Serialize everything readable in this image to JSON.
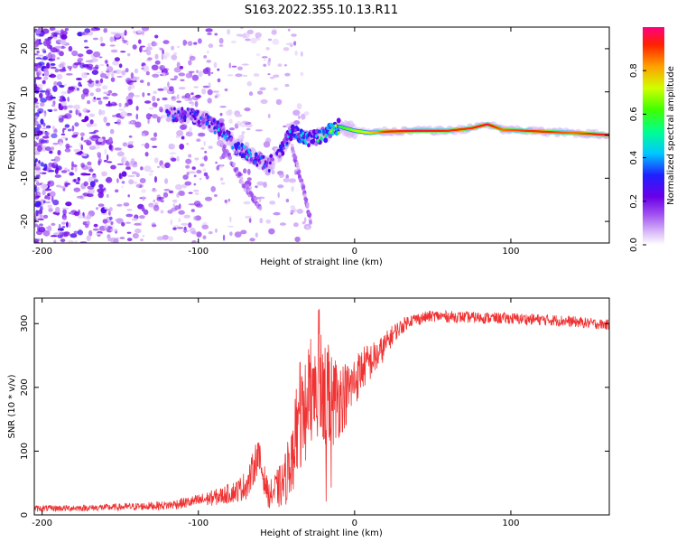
{
  "figure": {
    "title": "S163.2022.355.10.13.R11"
  },
  "chart_data": [
    {
      "type": "heatmap",
      "name": "spectrogram",
      "xlabel": "Height of straight line (km)",
      "ylabel": "Frequency (Hz)",
      "xlim": [
        -205,
        163
      ],
      "ylim": [
        -25,
        25
      ],
      "xticks": [
        -200,
        -100,
        0,
        100
      ],
      "yticks": [
        -20,
        -10,
        0,
        10,
        20
      ],
      "colorbar": {
        "label": "Normalized spectral amplitude",
        "range": [
          0,
          1
        ],
        "ticks": [
          "0.0",
          "0.2",
          "0.4",
          "0.6",
          "0.8"
        ],
        "colormap": [
          "#ffffff",
          "#d8b8f8",
          "#a050f0",
          "#6a00e8",
          "#2020ff",
          "#00c8ff",
          "#00ff90",
          "#40ff00",
          "#d0ff00",
          "#ffa000",
          "#ff2000",
          "#ff0080"
        ]
      },
      "features": {
        "signal_trace": [
          {
            "x": -120,
            "y": 5,
            "a": 0.25
          },
          {
            "x": -105,
            "y": 4.5,
            "a": 0.3
          },
          {
            "x": -95,
            "y": 3.5,
            "a": 0.3
          },
          {
            "x": -85,
            "y": 1,
            "a": 0.35
          },
          {
            "x": -75,
            "y": -3,
            "a": 0.35
          },
          {
            "x": -65,
            "y": -5,
            "a": 0.35
          },
          {
            "x": -55,
            "y": -7,
            "a": 0.3
          },
          {
            "x": -48,
            "y": -4,
            "a": 0.3
          },
          {
            "x": -40,
            "y": 1,
            "a": 0.35
          },
          {
            "x": -30,
            "y": -1,
            "a": 0.4
          },
          {
            "x": -20,
            "y": 0,
            "a": 0.5
          },
          {
            "x": -10,
            "y": 2,
            "a": 0.6
          },
          {
            "x": 0,
            "y": 1,
            "a": 0.7
          },
          {
            "x": 10,
            "y": 0.5,
            "a": 0.75
          },
          {
            "x": 20,
            "y": 0.8,
            "a": 0.9
          },
          {
            "x": 40,
            "y": 1,
            "a": 0.95
          },
          {
            "x": 60,
            "y": 1,
            "a": 0.9
          },
          {
            "x": 75,
            "y": 1.6,
            "a": 0.9
          },
          {
            "x": 85,
            "y": 2.5,
            "a": 0.95
          },
          {
            "x": 95,
            "y": 1.2,
            "a": 0.85
          },
          {
            "x": 110,
            "y": 1,
            "a": 0.9
          },
          {
            "x": 125,
            "y": 0.7,
            "a": 0.9
          },
          {
            "x": 140,
            "y": 0.5,
            "a": 0.85
          },
          {
            "x": 163,
            "y": 0,
            "a": 0.95
          }
        ],
        "noise_region_x": [
          -205,
          -60
        ]
      }
    },
    {
      "type": "line",
      "name": "snr",
      "xlabel": "Height of straight line (km)",
      "ylabel": "SNR (10 * v/v)",
      "xlim": [
        -205,
        163
      ],
      "ylim": [
        0,
        340
      ],
      "xticks": [
        -200,
        -100,
        0,
        100
      ],
      "yticks": [
        0,
        100,
        200,
        300
      ],
      "color": "#f03232",
      "envelope": {
        "x": [
          -205,
          -170,
          -140,
          -120,
          -100,
          -85,
          -75,
          -68,
          -62,
          -55,
          -45,
          -35,
          -25,
          -15,
          -5,
          5,
          15,
          25,
          35,
          50,
          70,
          100,
          130,
          163
        ],
        "y": [
          10,
          11,
          13,
          15,
          22,
          30,
          38,
          50,
          95,
          30,
          50,
          150,
          200,
          180,
          190,
          230,
          250,
          285,
          305,
          312,
          310,
          308,
          305,
          298
        ],
        "amp": [
          5,
          5,
          6,
          7,
          10,
          14,
          18,
          25,
          30,
          20,
          40,
          90,
          100,
          80,
          50,
          35,
          25,
          15,
          10,
          9,
          9,
          9,
          9,
          8
        ]
      }
    }
  ]
}
